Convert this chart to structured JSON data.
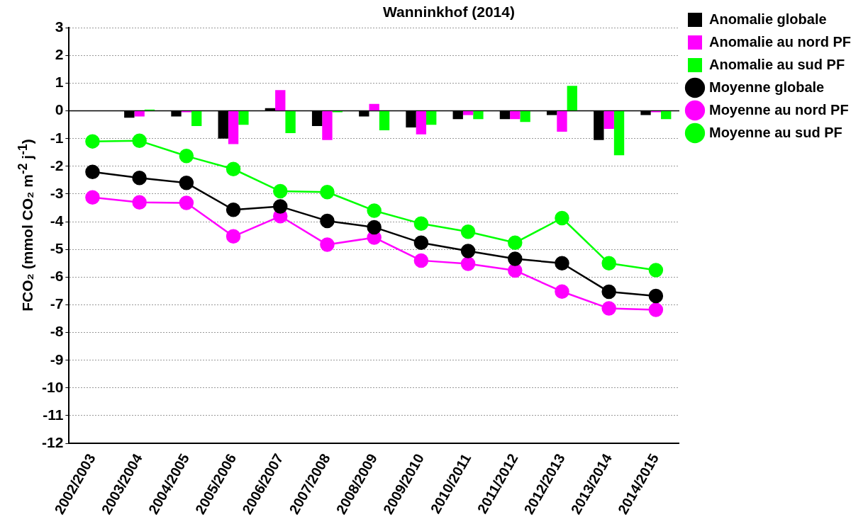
{
  "chart_data": {
    "type": "bar",
    "title": "Wanninkhof (2014)",
    "ylabel": "FCO₂ (mmol CO₂ m$^{-2}$ j$^{-1}$)",
    "categories": [
      "2002/2003",
      "2003/2004",
      "2004/2005",
      "2005/2006",
      "2006/2007",
      "2007/2008",
      "2008/2009",
      "2009/2010",
      "2010/2011",
      "2011/2012",
      "2012/2013",
      "2013/2014",
      "2014/2015"
    ],
    "series": [
      {
        "name": "Anomalie globale",
        "type": "bar",
        "color": "#000000",
        "values": [
          null,
          -0.25,
          -0.2,
          -1.0,
          0.1,
          -0.55,
          -0.2,
          -0.6,
          -0.3,
          -0.3,
          -0.15,
          -1.05,
          -0.15
        ]
      },
      {
        "name": "Anomalie au nord PF",
        "type": "bar",
        "color": "#ff00ff",
        "values": [
          null,
          -0.2,
          -0.05,
          -1.2,
          0.75,
          -1.05,
          0.25,
          -0.85,
          -0.15,
          -0.3,
          -0.75,
          -0.65,
          -0.05
        ]
      },
      {
        "name": "Anomalie au sud PF",
        "type": "bar",
        "color": "#00ff00",
        "values": [
          null,
          0.05,
          -0.55,
          -0.5,
          -0.8,
          -0.05,
          -0.7,
          -0.5,
          -0.3,
          -0.4,
          0.9,
          -1.6,
          -0.3
        ]
      },
      {
        "name": "Moyenne globale",
        "type": "line",
        "color": "#000000",
        "values": [
          -2.2,
          -2.42,
          -2.6,
          -3.57,
          -3.45,
          -3.97,
          -4.2,
          -4.76,
          -5.06,
          -5.34,
          -5.5,
          -6.53,
          -6.68
        ]
      },
      {
        "name": "Moyenne au nord PF",
        "type": "line",
        "color": "#ff00ff",
        "values": [
          -3.12,
          -3.3,
          -3.32,
          -4.53,
          -3.8,
          -4.83,
          -4.57,
          -5.4,
          -5.52,
          -5.76,
          -6.52,
          -7.13,
          -7.18
        ]
      },
      {
        "name": "Moyenne au sud PF",
        "type": "line",
        "color": "#00ff00",
        "values": [
          -1.1,
          -1.08,
          -1.63,
          -2.1,
          -2.9,
          -2.93,
          -3.6,
          -4.07,
          -4.36,
          -4.76,
          -3.87,
          -5.5,
          -5.75
        ]
      }
    ],
    "ylim": [
      -12,
      3
    ],
    "yticks": [
      -12,
      -11,
      -10,
      -9,
      -8,
      -7,
      -6,
      -5,
      -4,
      -3,
      -2,
      -1,
      0,
      1,
      2,
      3
    ],
    "ref_lines": [
      {
        "axis": "y",
        "value": 0,
        "color": "#000000"
      }
    ],
    "grid": "y",
    "legend": "right",
    "marker": "circle",
    "line_style": "solid"
  }
}
